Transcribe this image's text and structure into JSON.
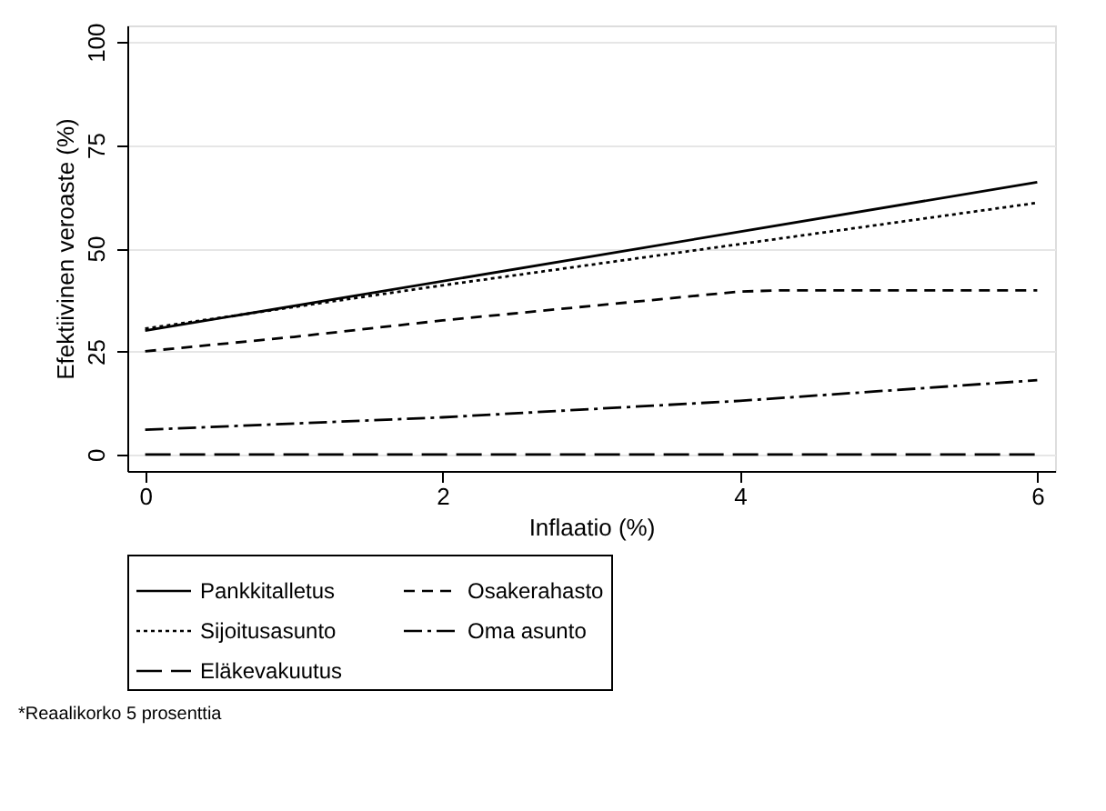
{
  "chart_data": {
    "type": "line",
    "xlabel": "Inflaatio (%)",
    "ylabel": "Efektiivinen veroaste (%)",
    "annotations": [
      "*Reaalikorko 5 prosenttia"
    ],
    "xlim": [
      -0.12,
      6.12
    ],
    "xticks": [
      0,
      2,
      4,
      6
    ],
    "ylim": [
      -4,
      104
    ],
    "yticks": [
      0,
      25,
      50,
      75,
      100
    ],
    "grid": "y",
    "legend": "bottom",
    "marker": "none",
    "series": [
      {
        "name": "Pankkitalletus",
        "color": "#000000",
        "line_style": "solid",
        "x": [
          0,
          6
        ],
        "values": [
          30,
          66
        ]
      },
      {
        "name": "Osakerahasto",
        "color": "#000000",
        "line_style": "dashed",
        "x": [
          0,
          1,
          2,
          3,
          4,
          4.3,
          6
        ],
        "values": [
          25,
          28.5,
          32.5,
          36,
          39.5,
          39.8,
          39.8
        ]
      },
      {
        "name": "Sijoitusasunto",
        "color": "#000000",
        "line_style": "dotted",
        "x": [
          0,
          2,
          4,
          6
        ],
        "values": [
          30.5,
          41,
          51,
          61
        ]
      },
      {
        "name": "Oma asunto",
        "color": "#000000",
        "line_style": "dashdot",
        "x": [
          0,
          2,
          4,
          6
        ],
        "values": [
          6,
          9,
          13,
          18
        ]
      },
      {
        "name": "Eläkevakuutus",
        "color": "#000000",
        "line_style": "longdash",
        "x": [
          0,
          6
        ],
        "values": [
          0,
          0
        ]
      }
    ]
  }
}
